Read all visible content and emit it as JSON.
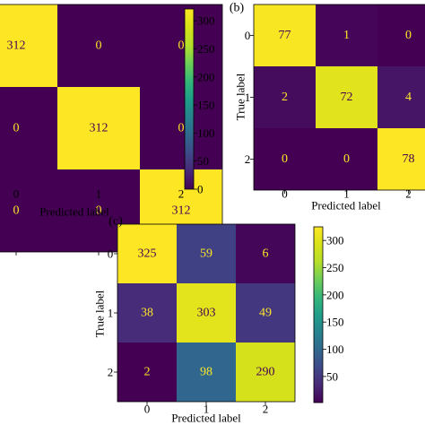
{
  "chart_data": [
    {
      "type": "heatmap",
      "panel_label": "",
      "ylabel": "",
      "xlabel": "Predicted label",
      "y_tick_labels": [],
      "x_tick_labels": [
        "0",
        "1",
        "2"
      ],
      "values": [
        [
          312,
          0,
          0
        ],
        [
          0,
          312,
          0
        ],
        [
          0,
          0,
          312
        ]
      ],
      "colorbar_ticks": [
        "300",
        "250",
        "200",
        "150",
        "100",
        "50",
        "0"
      ]
    },
    {
      "type": "heatmap",
      "panel_label": "(b)",
      "ylabel": "True label",
      "xlabel": "Predicted label",
      "y_tick_labels": [
        "0",
        "1",
        "2"
      ],
      "x_tick_labels": [
        "0",
        "1",
        "2"
      ],
      "values": [
        [
          77,
          1,
          0
        ],
        [
          2,
          72,
          4
        ],
        [
          0,
          0,
          78
        ]
      ],
      "colorbar_ticks": []
    },
    {
      "type": "heatmap",
      "panel_label": "(c)",
      "ylabel": "True label",
      "xlabel": "Predicted label",
      "y_tick_labels": [
        "0",
        "1",
        "2"
      ],
      "x_tick_labels": [
        "0",
        "1",
        "2"
      ],
      "values": [
        [
          325,
          59,
          6
        ],
        [
          38,
          303,
          49
        ],
        [
          2,
          98,
          290
        ]
      ],
      "colorbar_ticks": [
        "300",
        "250",
        "200",
        "150",
        "100",
        "50"
      ]
    }
  ],
  "colors": {
    "low": "#440154",
    "high": "#fde725",
    "text_on_dark": "#fde725",
    "text_on_light": "#440154"
  }
}
